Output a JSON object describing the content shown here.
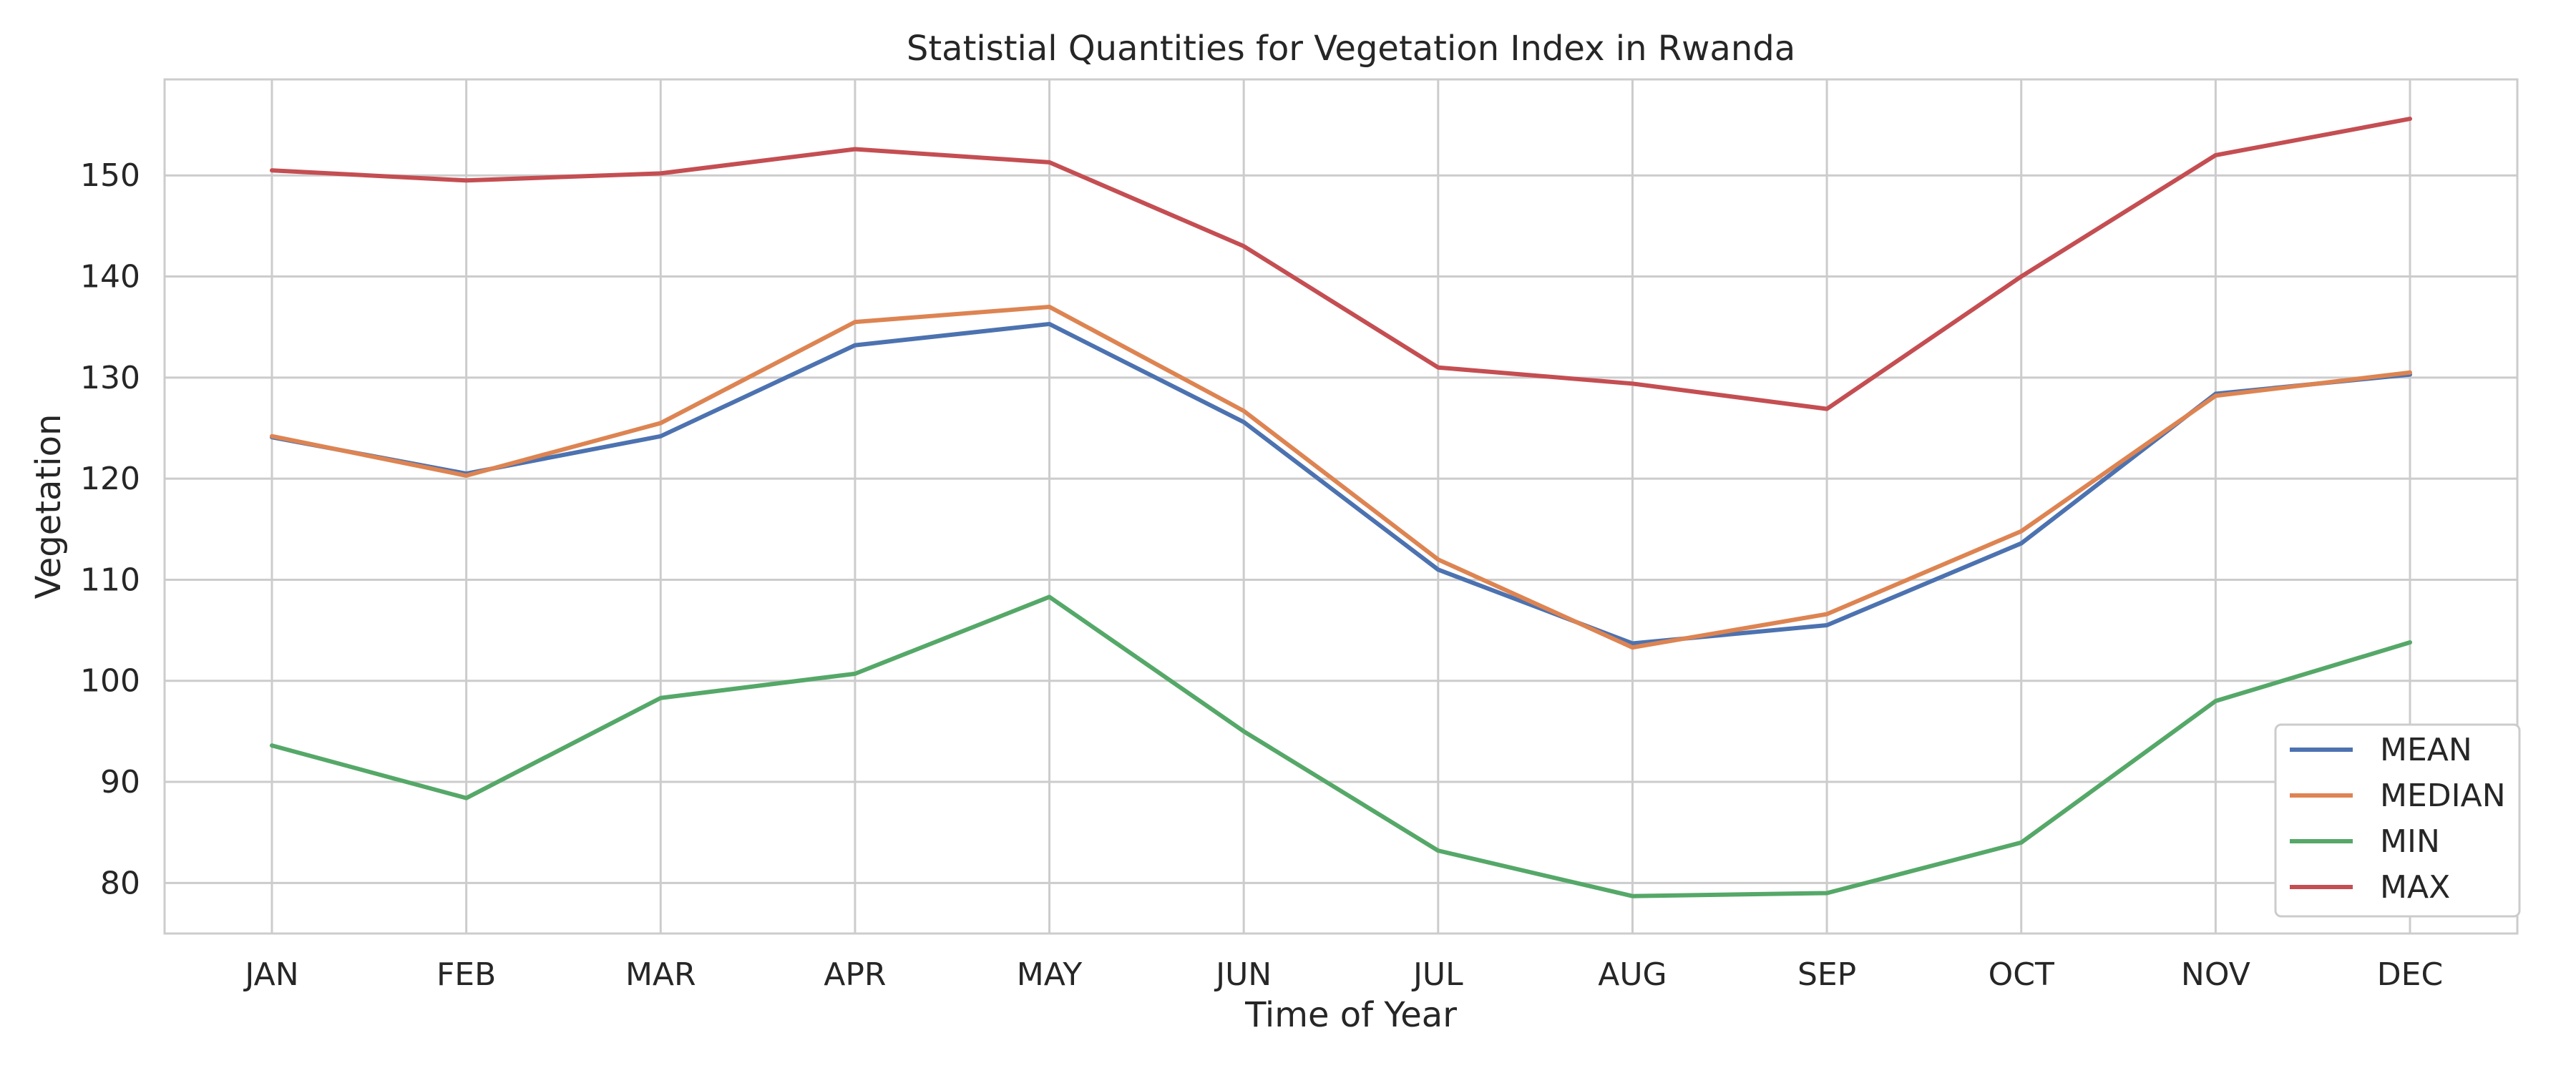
{
  "chart_data": {
    "type": "line",
    "title": "Statistial Quantities for Vegetation Index in Rwanda",
    "xlabel": "Time of Year",
    "ylabel": "Vegetation",
    "categories": [
      "JAN",
      "FEB",
      "MAR",
      "APR",
      "MAY",
      "JUN",
      "JUL",
      "AUG",
      "SEP",
      "OCT",
      "NOV",
      "DEC"
    ],
    "yticks": [
      80,
      90,
      100,
      110,
      120,
      130,
      140,
      150
    ],
    "ylim": [
      75,
      159.5
    ],
    "grid": true,
    "legend_position": "bottom-right",
    "series": [
      {
        "name": "MEAN",
        "color": "#4c72b0",
        "values": [
          124.1,
          120.5,
          124.2,
          133.2,
          135.3,
          125.6,
          111.0,
          103.7,
          105.5,
          113.6,
          128.4,
          130.3
        ]
      },
      {
        "name": "MEDIAN",
        "color": "#dd8452",
        "values": [
          124.2,
          120.3,
          125.5,
          135.5,
          137.0,
          126.7,
          112.0,
          103.3,
          106.6,
          114.8,
          128.2,
          130.5
        ]
      },
      {
        "name": "MIN",
        "color": "#55a868",
        "values": [
          93.6,
          88.4,
          98.3,
          100.7,
          108.3,
          95.0,
          83.2,
          78.7,
          79.0,
          84.0,
          98.0,
          103.8
        ]
      },
      {
        "name": "MAX",
        "color": "#c44e52",
        "values": [
          150.5,
          149.5,
          150.2,
          152.6,
          151.3,
          143.0,
          131.0,
          129.4,
          126.9,
          140.0,
          152.0,
          155.6
        ]
      }
    ]
  }
}
